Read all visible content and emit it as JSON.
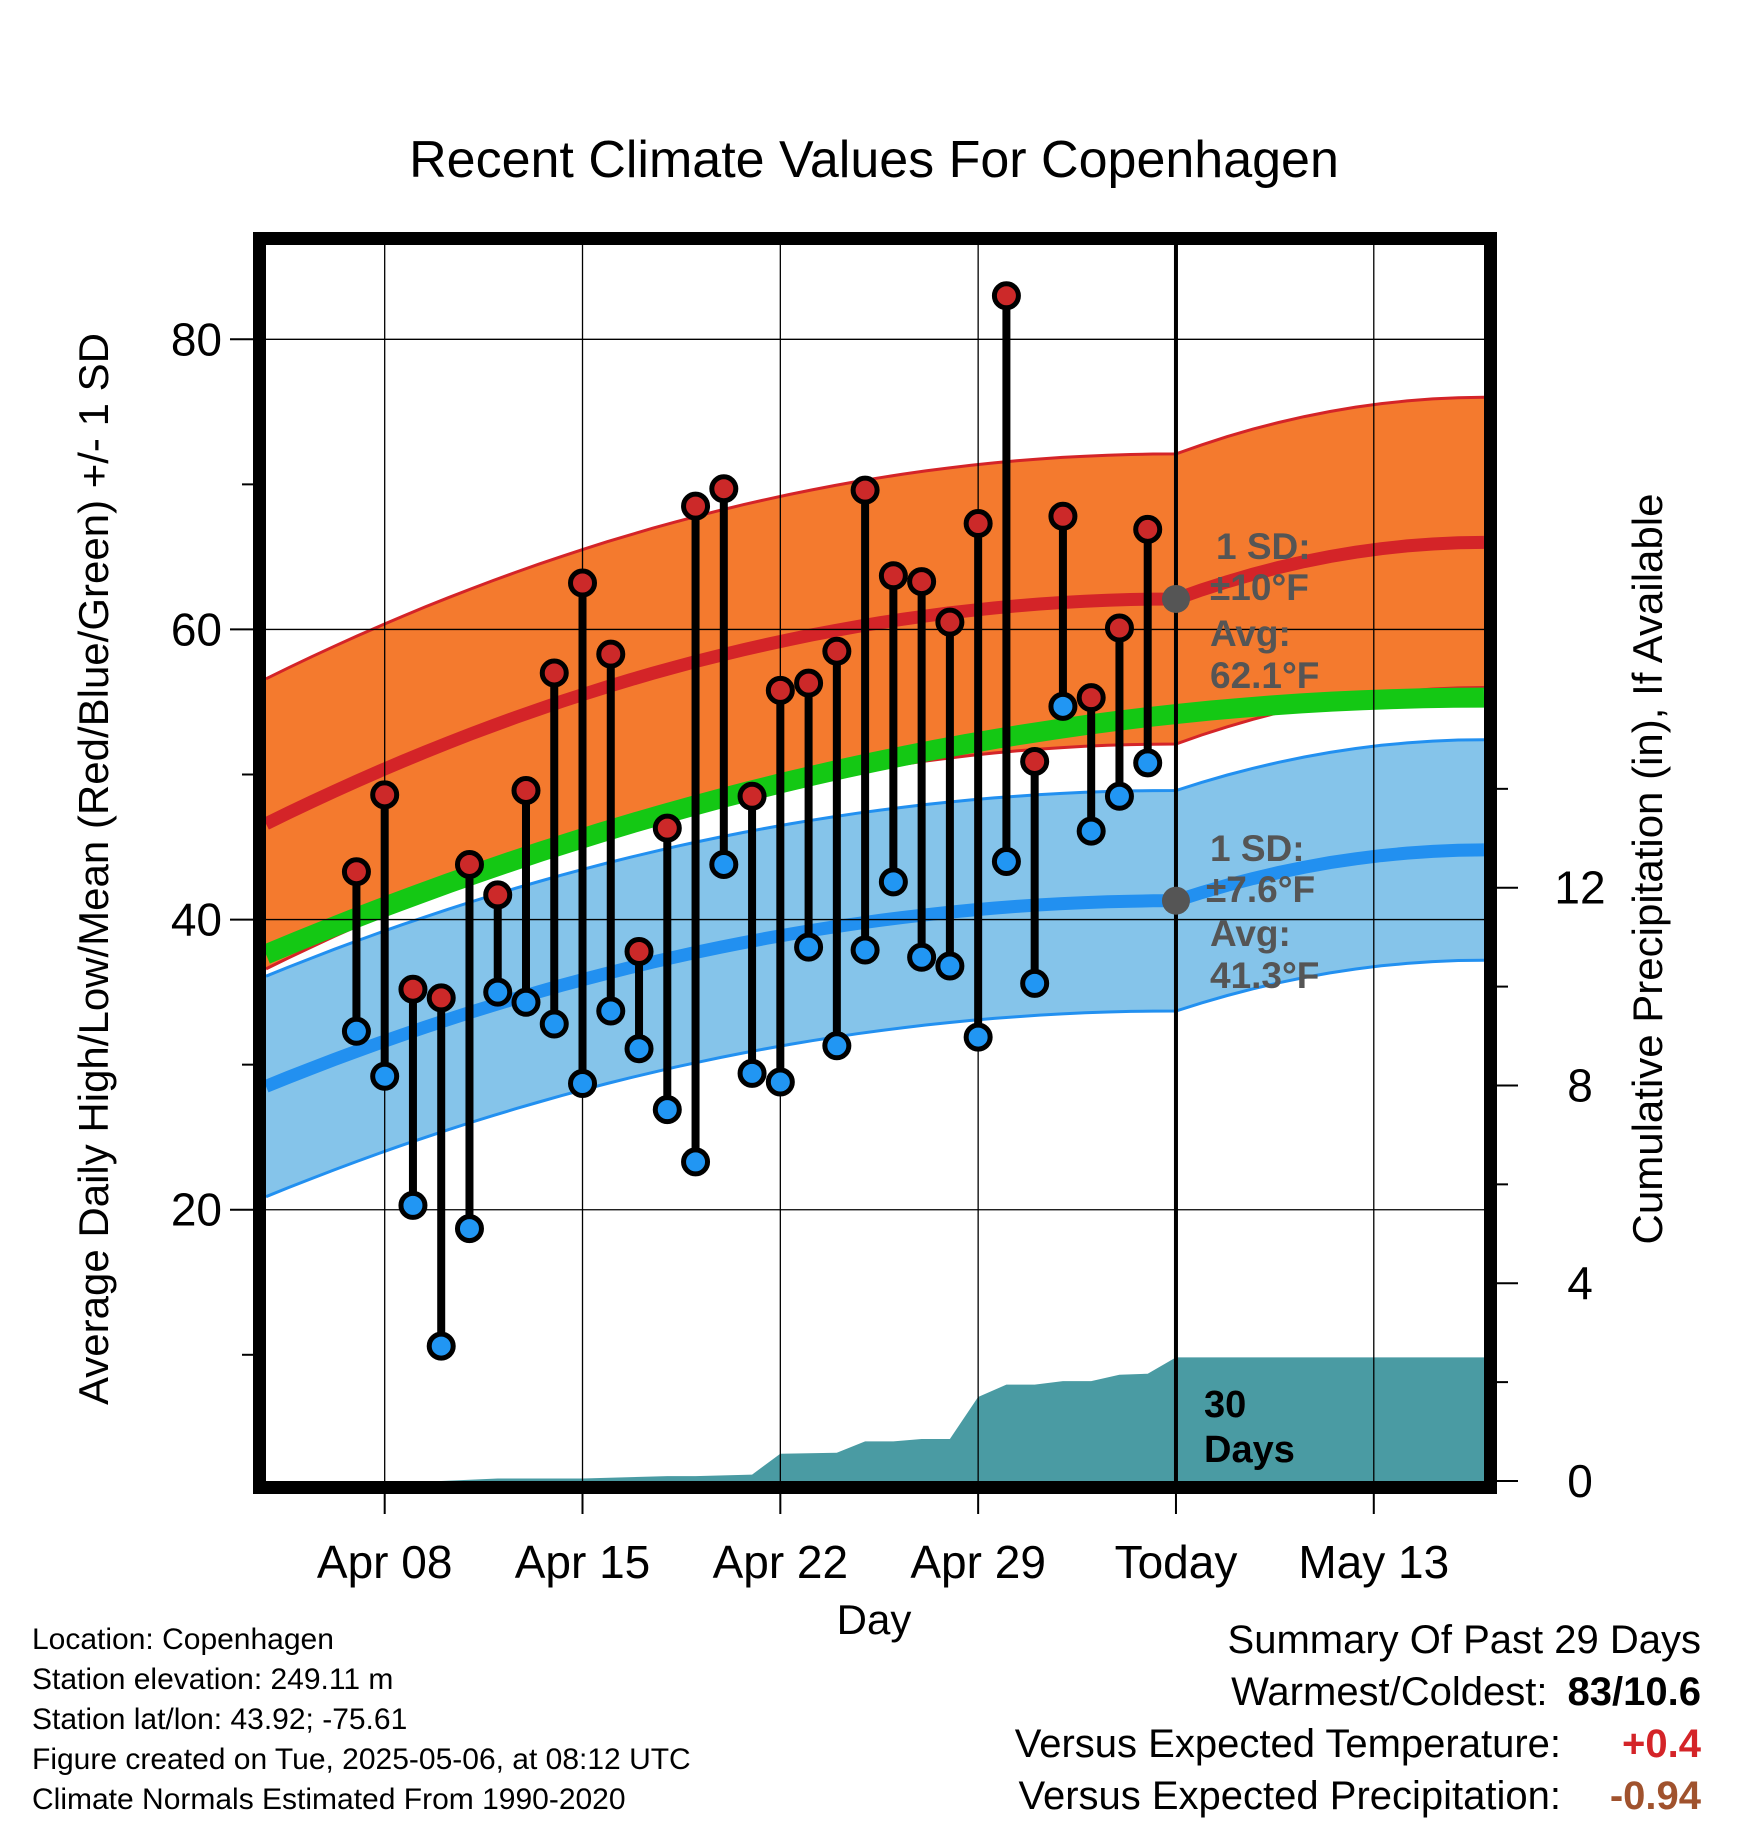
{
  "title": "Recent Climate Values For Copenhagen",
  "y_left_label": "Average Daily High/Low/Mean (Red/Blue/Green) +/- 1 SD",
  "y_right_label": "Cumulative Precipitation (in), If Available",
  "x_label": "Day",
  "x_ticks": [
    "Apr 08",
    "Apr 15",
    "Apr 22",
    "Apr 29",
    "Today",
    "May 13"
  ],
  "y_left_ticks": [
    "20",
    "40",
    "60",
    "80"
  ],
  "y_right_ticks": [
    "0",
    "4",
    "8",
    "12"
  ],
  "annotations": {
    "high_sd_line1": "1 SD:",
    "high_sd_line2": "±10°F",
    "high_avg_line1": "Avg:",
    "high_avg_line2": "62.1°F",
    "low_sd_line1": "1 SD:",
    "low_sd_line2": "±7.6°F",
    "low_avg_line1": "Avg:",
    "low_avg_line2": "41.3°F",
    "days_line1": "30",
    "days_line2": "Days"
  },
  "footer": {
    "location": "Location: Copenhagen",
    "elevation": "Station elevation: 249.11 m",
    "latlon": "Station lat/lon: 43.92; -75.61",
    "created": "Figure created on Tue, 2025-05-06, at 08:12 UTC",
    "normals": "Climate Normals Estimated From 1990-2020"
  },
  "summary": {
    "heading": "Summary Of Past 29 Days",
    "warmest_label": "Warmest/Coldest:",
    "warmest_value": "83/10.6",
    "temp_label": "Versus Expected Temperature:",
    "temp_value": "+0.4",
    "precip_label": "Versus Expected Precipitation:",
    "precip_value": "-0.94"
  },
  "colors": {
    "high_band": "#f47a2e",
    "high_line": "#d42428",
    "low_band": "#85c4ea",
    "low_line": "#2290f0",
    "mean_line": "#14c814",
    "precip": "#4a9ba3",
    "high_dot": "#cc2929",
    "low_dot": "#2196f3",
    "temp_delta": "#d42428",
    "precip_delta": "#a0522d"
  },
  "chart_data": {
    "type": "line",
    "x_range_days": [
      -32.2,
      10.9
    ],
    "ylim_left": [
      1.3,
      86.5
    ],
    "ylim_right": [
      0,
      25
    ],
    "highs": [
      43.3,
      48.6,
      35.2,
      34.6,
      43.8,
      41.7,
      48.9,
      57.0,
      63.2,
      58.3,
      37.8,
      46.3,
      68.5,
      69.7,
      48.5,
      55.8,
      56.3,
      58.5,
      69.6,
      63.7,
      63.3,
      60.5,
      67.3,
      83.0,
      50.9,
      67.8,
      55.3,
      60.1,
      66.9
    ],
    "lows": [
      32.3,
      29.2,
      20.3,
      10.6,
      18.7,
      35.0,
      34.3,
      32.8,
      28.7,
      33.7,
      31.1,
      26.9,
      23.3,
      43.8,
      29.4,
      28.8,
      38.1,
      31.3,
      37.9,
      42.6,
      37.4,
      36.8,
      31.9,
      44.0,
      35.6,
      54.7,
      46.1,
      48.5,
      50.8
    ],
    "normal_high_start": 46.6,
    "normal_high_today": 62.1,
    "normal_high_end": 66.0,
    "high_sd": 10,
    "normal_low_start": 28.5,
    "normal_low_today": 41.3,
    "normal_low_end": 44.8,
    "low_sd": 7.6,
    "normal_mean_start": 37.6,
    "normal_mean_end": 55.3,
    "precip_x": [
      -32.2,
      -26,
      -24,
      -21,
      -18.0,
      -17,
      -15.0,
      -14,
      -12.0,
      -11,
      -10.0,
      -9,
      -8.0,
      -7,
      -6.0,
      -5,
      -4.0,
      -3,
      -2.0,
      -1,
      0,
      10.9
    ],
    "precip_cumulative": [
      0,
      0,
      0.05,
      0.05,
      0.1,
      0.1,
      0.13,
      0.55,
      0.57,
      0.8,
      0.8,
      0.85,
      0.85,
      1.7,
      1.95,
      1.95,
      2.02,
      2.02,
      2.15,
      2.17,
      2.5,
      2.5
    ]
  }
}
